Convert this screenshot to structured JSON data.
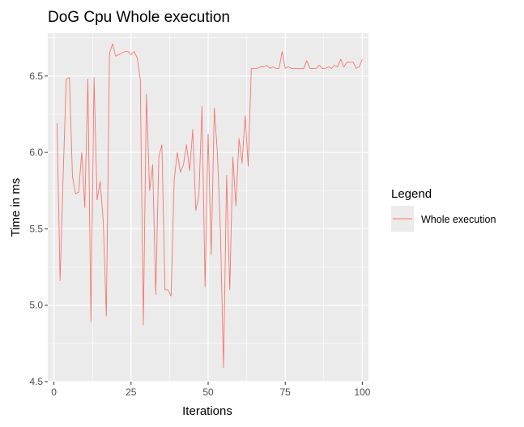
{
  "chart_data": {
    "type": "line",
    "title": "DoG Cpu Whole execution",
    "xlabel": "Iterations",
    "ylabel": "Time in ms",
    "xlim": [
      -2,
      102
    ],
    "ylim": [
      4.5,
      6.78
    ],
    "x_ticks": [
      0,
      25,
      50,
      75,
      100
    ],
    "x_tick_labels": [
      "0",
      "25",
      "50",
      "75",
      "100"
    ],
    "y_ticks": [
      4.5,
      5.0,
      5.5,
      6.0,
      6.5
    ],
    "y_tick_labels": [
      "4.5",
      "5.0",
      "5.5",
      "6.0",
      "6.5"
    ],
    "grid": true,
    "legend": {
      "title": "Legend",
      "position": "right"
    },
    "colors": {
      "panel": "#ebebeb",
      "grid": "#ffffff",
      "series": "#f8766d"
    },
    "series": [
      {
        "name": "Whole execution",
        "x": [
          1,
          2,
          3,
          4,
          5,
          6,
          7,
          8,
          9,
          10,
          11,
          12,
          13,
          14,
          15,
          16,
          17,
          18,
          19,
          20,
          21,
          22,
          23,
          24,
          25,
          26,
          27,
          28,
          29,
          30,
          31,
          32,
          33,
          34,
          35,
          36,
          37,
          38,
          39,
          40,
          41,
          42,
          43,
          44,
          45,
          46,
          47,
          48,
          49,
          50,
          51,
          52,
          53,
          54,
          55,
          56,
          57,
          58,
          59,
          60,
          61,
          62,
          63,
          64,
          65,
          66,
          67,
          68,
          69,
          70,
          71,
          72,
          73,
          74,
          75,
          76,
          77,
          78,
          79,
          80,
          81,
          82,
          83,
          84,
          85,
          86,
          87,
          88,
          89,
          90,
          91,
          92,
          93,
          94,
          95,
          96,
          97,
          98,
          99,
          100
        ],
        "y": [
          6.19,
          5.16,
          5.85,
          6.48,
          6.49,
          5.84,
          5.73,
          5.74,
          6.0,
          5.64,
          6.48,
          4.89,
          6.49,
          5.69,
          5.81,
          5.55,
          4.93,
          6.65,
          6.71,
          6.63,
          6.64,
          6.65,
          6.66,
          6.66,
          6.64,
          6.66,
          6.62,
          6.48,
          4.87,
          6.38,
          5.75,
          5.92,
          5.07,
          5.97,
          6.05,
          5.1,
          5.1,
          5.06,
          5.82,
          6.0,
          5.87,
          5.92,
          6.05,
          5.88,
          6.15,
          5.62,
          5.72,
          6.3,
          5.12,
          6.12,
          5.33,
          6.29,
          6.0,
          5.48,
          4.59,
          5.85,
          5.1,
          5.97,
          5.65,
          6.09,
          5.93,
          6.24,
          5.91,
          6.55,
          6.55,
          6.55,
          6.56,
          6.56,
          6.57,
          6.55,
          6.56,
          6.55,
          6.55,
          6.66,
          6.55,
          6.56,
          6.55,
          6.55,
          6.55,
          6.55,
          6.55,
          6.6,
          6.55,
          6.55,
          6.55,
          6.57,
          6.55,
          6.55,
          6.56,
          6.55,
          6.57,
          6.56,
          6.61,
          6.56,
          6.59,
          6.59,
          6.59,
          6.55,
          6.56,
          6.61
        ]
      }
    ]
  }
}
